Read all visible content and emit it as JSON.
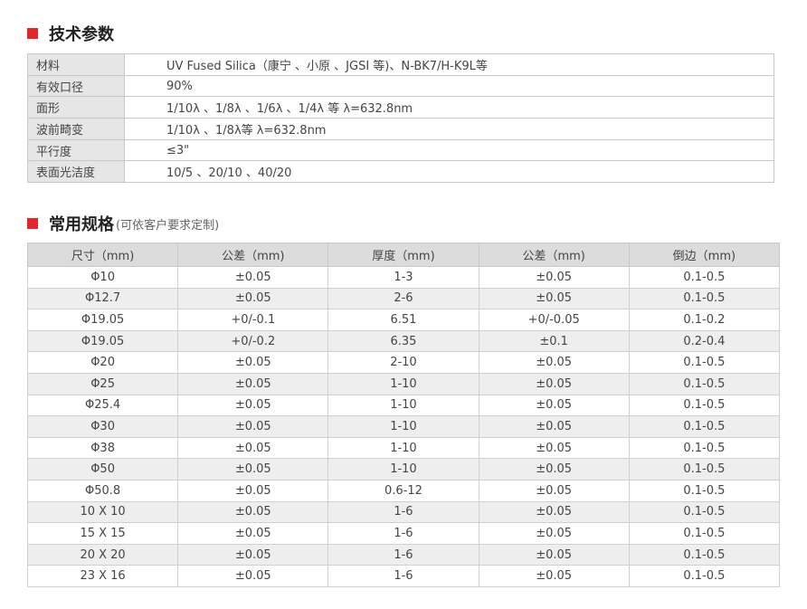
{
  "section1": {
    "title": "技术参数",
    "rows": [
      {
        "label": "材料",
        "value": "UV  Fused Silica（康宁 、小原 、JGSI 等)、N-BK7/H-K9L等"
      },
      {
        "label": "有效口径",
        "value": "90%"
      },
      {
        "label": "面形",
        "value": "1/10λ 、1/8λ 、1/6λ 、1/4λ 等    λ=632.8nm"
      },
      {
        "label": "波前畸变",
        "value": "1/10λ 、1/8λ等    λ=632.8nm"
      },
      {
        "label": "平行度",
        "value": "≤3\""
      },
      {
        "label": "表面光洁度",
        "value": "10/5 、20/10 、40/20"
      }
    ]
  },
  "section2": {
    "title": "常用规格",
    "subtitle": "(可依客户要求定制)",
    "headers": [
      "尺寸（mm)",
      "公差（mm)",
      "厚度（mm)",
      "公差（mm)",
      "倒边（mm)"
    ],
    "rows": [
      [
        "Φ10",
        "±0.05",
        "1-3",
        "±0.05",
        "0.1-0.5"
      ],
      [
        "Φ12.7",
        "±0.05",
        "2-6",
        "±0.05",
        "0.1-0.5"
      ],
      [
        "Φ19.05",
        "+0/-0.1",
        "6.51",
        "+0/-0.05",
        "0.1-0.2"
      ],
      [
        "Φ19.05",
        "+0/-0.2",
        "6.35",
        "±0.1",
        "0.2-0.4"
      ],
      [
        "Φ20",
        "±0.05",
        "2-10",
        "±0.05",
        "0.1-0.5"
      ],
      [
        "Φ25",
        "±0.05",
        "1-10",
        "±0.05",
        "0.1-0.5"
      ],
      [
        "Φ25.4",
        "±0.05",
        "1-10",
        "±0.05",
        "0.1-0.5"
      ],
      [
        "Φ30",
        "±0.05",
        "1-10",
        "±0.05",
        "0.1-0.5"
      ],
      [
        "Φ38",
        "±0.05",
        "1-10",
        "±0.05",
        "0.1-0.5"
      ],
      [
        "Φ50",
        "±0.05",
        "1-10",
        "±0.05",
        "0.1-0.5"
      ],
      [
        "Φ50.8",
        "±0.05",
        "0.6-12",
        "±0.05",
        "0.1-0.5"
      ],
      [
        "10 X 10",
        "±0.05",
        "1-6",
        "±0.05",
        "0.1-0.5"
      ],
      [
        "15 X 15",
        "±0.05",
        "1-6",
        "±0.05",
        "0.1-0.5"
      ],
      [
        "20 X 20",
        "±0.05",
        "1-6",
        "±0.05",
        "0.1-0.5"
      ],
      [
        "23 X 16",
        "±0.05",
        "1-6",
        "±0.05",
        "0.1-0.5"
      ]
    ]
  },
  "accent_color": "#e3262b"
}
